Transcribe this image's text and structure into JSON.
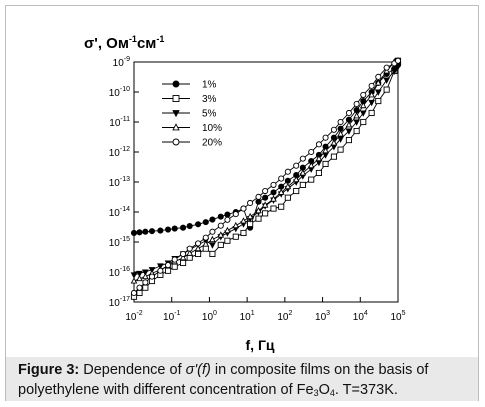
{
  "caption": {
    "label": "Figure 3:",
    "text_before": " Dependence of ",
    "func": "σ'(f)",
    "text_middle": " in composite films on the basis of polyethylene with different concentration of Fe",
    "sub3": "3",
    "o": "O",
    "sub4": "4",
    "text_after": ". T=373K."
  },
  "chart_data": {
    "type": "scatter",
    "ylabel": "σ', Ом⁻¹см⁻¹",
    "xlabel": "f, Гц",
    "xscale": "log",
    "yscale": "log",
    "xlim": [
      0.01,
      100000
    ],
    "ylim": [
      1e-17,
      1e-09
    ],
    "x_ticks": [
      "10-2",
      "10-1",
      "100",
      "101",
      "102",
      "103",
      "104",
      "105"
    ],
    "y_ticks": [
      "10-9",
      "10-10",
      "10-11",
      "10-12",
      "10-13",
      "10-14",
      "10-15",
      "10-16",
      "10-17"
    ],
    "legend_position": "top-left",
    "series": [
      {
        "name": "1%",
        "marker": "circle-filled",
        "points": [
          [
            0.01,
            2e-15
          ],
          [
            0.014,
            2.1e-15
          ],
          [
            0.02,
            2.2e-15
          ],
          [
            0.03,
            2.3e-15
          ],
          [
            0.05,
            2.4e-15
          ],
          [
            0.08,
            2.6e-15
          ],
          [
            0.12,
            2.8e-15
          ],
          [
            0.2,
            3e-15
          ],
          [
            0.3,
            3.4e-15
          ],
          [
            0.5,
            3.9e-15
          ],
          [
            0.8,
            4.6e-15
          ],
          [
            1.2,
            5.6e-15
          ],
          [
            2,
            7e-15
          ],
          [
            3,
            8.2e-15
          ],
          [
            5,
            1e-14
          ],
          [
            8,
            1.3e-14
          ],
          [
            12,
            3e-15
          ],
          [
            20,
            2.2e-14
          ],
          [
            30,
            3e-14
          ],
          [
            50,
            4.5e-14
          ],
          [
            80,
            7e-14
          ],
          [
            120,
            1.1e-13
          ],
          [
            200,
            1.7e-13
          ],
          [
            300,
            3e-13
          ],
          [
            500,
            5e-13
          ],
          [
            800,
            8e-13
          ],
          [
            1200,
            1.5e-12
          ],
          [
            2000,
            3e-12
          ],
          [
            3000,
            6e-12
          ],
          [
            5000,
            1.2e-11
          ],
          [
            8000,
            2.5e-11
          ],
          [
            12000,
            5e-11
          ],
          [
            20000,
            1e-10
          ],
          [
            30000,
            2e-10
          ],
          [
            50000,
            4e-10
          ],
          [
            80000,
            6e-10
          ],
          [
            100000,
            8e-10
          ]
        ]
      },
      {
        "name": "3%",
        "marker": "square-open",
        "points": [
          [
            0.01,
            1.5e-17
          ],
          [
            0.014,
            2e-17
          ],
          [
            0.02,
            3e-17
          ],
          [
            0.03,
            5e-17
          ],
          [
            0.05,
            8e-17
          ],
          [
            0.08,
            1.1e-16
          ],
          [
            0.12,
            1.5e-16
          ],
          [
            0.2,
            2e-16
          ],
          [
            0.3,
            3e-16
          ],
          [
            0.5,
            4e-16
          ],
          [
            0.8,
            6e-16
          ],
          [
            1.2,
            4e-16
          ],
          [
            2,
            8e-16
          ],
          [
            3,
            1.1e-15
          ],
          [
            5,
            1.5e-15
          ],
          [
            8,
            2e-15
          ],
          [
            12,
            4e-15
          ],
          [
            20,
            6e-15
          ],
          [
            30,
            9e-15
          ],
          [
            50,
            1.3e-14
          ],
          [
            80,
            1.5e-14
          ],
          [
            120,
            3e-14
          ],
          [
            200,
            5e-14
          ],
          [
            300,
            8e-14
          ],
          [
            500,
            1.2e-13
          ],
          [
            800,
            2e-13
          ],
          [
            1200,
            4e-13
          ],
          [
            2000,
            7e-13
          ],
          [
            3000,
            1.2e-12
          ],
          [
            5000,
            2.5e-12
          ],
          [
            8000,
            5e-12
          ],
          [
            12000,
            1e-11
          ],
          [
            20000,
            2e-11
          ],
          [
            30000,
            5e-11
          ],
          [
            50000,
            1.2e-10
          ],
          [
            80000,
            5e-10
          ],
          [
            100000,
            1.1e-09
          ]
        ]
      },
      {
        "name": "5%",
        "marker": "triangle-down-filled",
        "points": [
          [
            0.01,
            8e-17
          ],
          [
            0.014,
            9e-17
          ],
          [
            0.02,
            1e-16
          ],
          [
            0.03,
            1.2e-16
          ],
          [
            0.05,
            1.6e-16
          ],
          [
            0.08,
            2e-16
          ],
          [
            0.12,
            2.8e-16
          ],
          [
            0.2,
            4e-16
          ],
          [
            0.3,
            5.5e-16
          ],
          [
            0.5,
            8e-16
          ],
          [
            0.8,
            1.1e-15
          ],
          [
            1.2,
            8e-16
          ],
          [
            2,
            1.5e-15
          ],
          [
            3,
            2e-15
          ],
          [
            5,
            2.8e-15
          ],
          [
            8,
            4e-15
          ],
          [
            12,
            6e-15
          ],
          [
            20,
            1e-14
          ],
          [
            30,
            1.6e-14
          ],
          [
            50,
            2.5e-14
          ],
          [
            80,
            4e-14
          ],
          [
            120,
            6e-14
          ],
          [
            200,
            1e-13
          ],
          [
            300,
            1.6e-13
          ],
          [
            500,
            2.7e-13
          ],
          [
            800,
            4.5e-13
          ],
          [
            1200,
            8e-13
          ],
          [
            2000,
            1.5e-12
          ],
          [
            3000,
            2.7e-12
          ],
          [
            5000,
            5e-12
          ],
          [
            8000,
            1e-11
          ],
          [
            12000,
            2e-11
          ],
          [
            20000,
            4.5e-11
          ],
          [
            30000,
            1e-10
          ],
          [
            50000,
            2.5e-10
          ],
          [
            80000,
            5e-10
          ],
          [
            100000,
            7e-10
          ]
        ]
      },
      {
        "name": "10%",
        "marker": "triangle-up-open",
        "points": [
          [
            0.01,
            5e-17
          ],
          [
            0.014,
            6e-17
          ],
          [
            0.02,
            7e-17
          ],
          [
            0.03,
            9e-17
          ],
          [
            0.05,
            1.2e-16
          ],
          [
            0.08,
            1.6e-16
          ],
          [
            0.12,
            2.2e-16
          ],
          [
            0.2,
            3e-16
          ],
          [
            0.3,
            4.2e-16
          ],
          [
            0.5,
            6e-16
          ],
          [
            0.8,
            8.5e-16
          ],
          [
            1.2,
            1.2e-15
          ],
          [
            2,
            1.7e-15
          ],
          [
            3,
            2.4e-15
          ],
          [
            5,
            3.5e-15
          ],
          [
            8,
            5e-15
          ],
          [
            12,
            7e-15
          ],
          [
            20,
            1.1e-14
          ],
          [
            30,
            1.7e-14
          ],
          [
            50,
            2.7e-14
          ],
          [
            80,
            4.5e-14
          ],
          [
            120,
            7e-14
          ],
          [
            200,
            1.2e-13
          ],
          [
            300,
            2e-13
          ],
          [
            500,
            3.5e-13
          ],
          [
            800,
            6e-13
          ],
          [
            1200,
            1.1e-12
          ],
          [
            2000,
            2e-12
          ],
          [
            3000,
            4e-12
          ],
          [
            5000,
            8e-12
          ],
          [
            8000,
            1.6e-11
          ],
          [
            12000,
            3.5e-11
          ],
          [
            20000,
            8e-11
          ],
          [
            30000,
            2e-10
          ],
          [
            50000,
            5e-10
          ],
          [
            80000,
            1e-09
          ],
          [
            100000,
            1.1e-09
          ]
        ]
      },
      {
        "name": "20%",
        "marker": "circle-open",
        "points": [
          [
            0.01,
            2e-17
          ],
          [
            0.014,
            3e-17
          ],
          [
            0.02,
            4.5e-17
          ],
          [
            0.03,
            7e-17
          ],
          [
            0.05,
            1.1e-16
          ],
          [
            0.08,
            1.7e-16
          ],
          [
            0.12,
            2.6e-16
          ],
          [
            0.2,
            4e-16
          ],
          [
            0.3,
            6e-16
          ],
          [
            0.5,
            9e-16
          ],
          [
            0.8,
            1.4e-15
          ],
          [
            1.2,
            2.2e-15
          ],
          [
            2,
            3.5e-15
          ],
          [
            3,
            5.5e-15
          ],
          [
            5,
            8.5e-15
          ],
          [
            8,
            1.3e-14
          ],
          [
            12,
            2e-14
          ],
          [
            20,
            3.2e-14
          ],
          [
            30,
            5e-14
          ],
          [
            50,
            8e-14
          ],
          [
            80,
            1.3e-13
          ],
          [
            120,
            2.2e-13
          ],
          [
            200,
            3.5e-13
          ],
          [
            300,
            6e-13
          ],
          [
            500,
            1e-12
          ],
          [
            800,
            1.8e-12
          ],
          [
            1200,
            3e-12
          ],
          [
            2000,
            5.5e-12
          ],
          [
            3000,
            1e-11
          ],
          [
            5000,
            2e-11
          ],
          [
            8000,
            4e-11
          ],
          [
            12000,
            8e-11
          ],
          [
            20000,
            1.6e-10
          ],
          [
            30000,
            3.2e-10
          ],
          [
            50000,
            6.5e-10
          ],
          [
            80000,
            9e-10
          ],
          [
            100000,
            1.1e-09
          ]
        ]
      }
    ]
  }
}
